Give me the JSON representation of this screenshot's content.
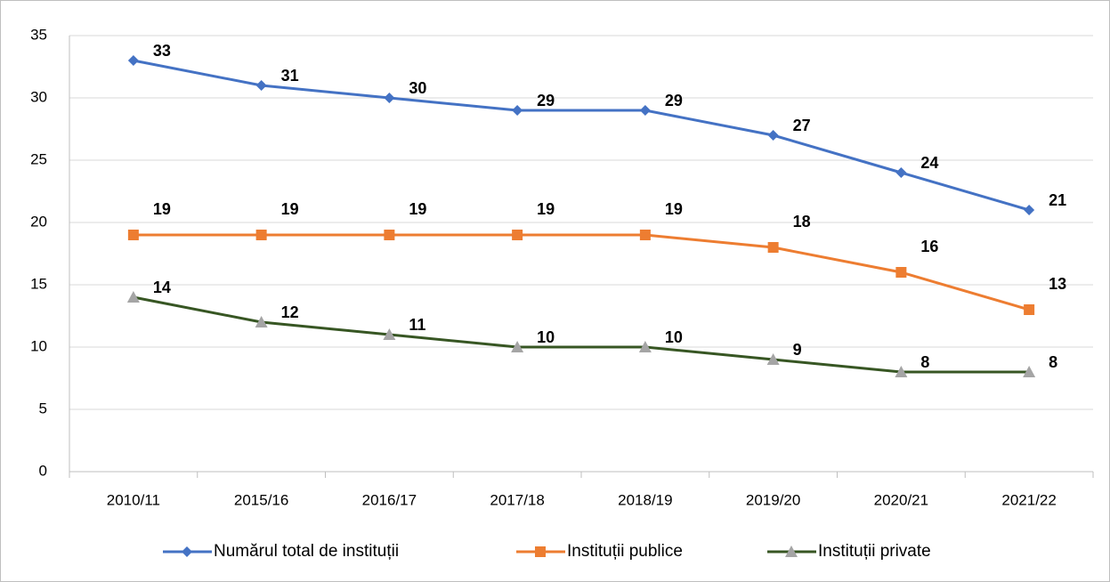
{
  "chart_data": {
    "type": "line",
    "categories": [
      "2010/11",
      "2015/16",
      "2016/17",
      "2017/18",
      "2018/19",
      "2019/20",
      "2020/21",
      "2021/22"
    ],
    "series": [
      {
        "name": "Numărul total de instituții",
        "color": "#4472c4",
        "marker_color": "#4472c4",
        "marker": "diamond",
        "values": [
          33,
          31,
          30,
          29,
          29,
          27,
          24,
          21
        ]
      },
      {
        "name": "Instituții publice",
        "color": "#ed7d31",
        "marker_color": "#ed7d31",
        "marker": "square",
        "values": [
          19,
          19,
          19,
          19,
          19,
          18,
          16,
          13
        ]
      },
      {
        "name": "Instituții private",
        "color": "#375623",
        "marker_color": "#a5a5a5",
        "marker": "triangle",
        "values": [
          14,
          12,
          11,
          10,
          10,
          9,
          8,
          8
        ]
      }
    ],
    "ylim": [
      0,
      35
    ],
    "yticks": [
      0,
      5,
      10,
      15,
      20,
      25,
      30,
      35
    ],
    "grid": true,
    "legend": "bottom"
  }
}
